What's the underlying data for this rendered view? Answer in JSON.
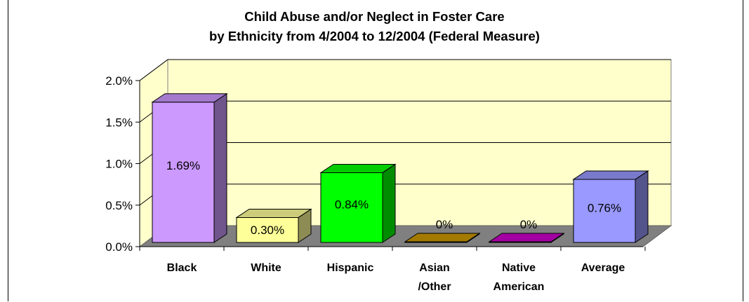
{
  "chart_data": {
    "type": "bar",
    "title_lines": [
      "Child Abuse and/or Neglect in Foster Care",
      "by Ethnicity from 4/2004 to 12/2004 (Federal Measure)"
    ],
    "categories": [
      [
        "Black"
      ],
      [
        "White"
      ],
      [
        "Hispanic"
      ],
      [
        "Asian",
        "/Other"
      ],
      [
        "Native",
        "American"
      ],
      [
        "Average"
      ]
    ],
    "values": [
      1.69,
      0.3,
      0.84,
      0,
      0,
      0.76
    ],
    "data_labels": [
      "1.69%",
      "0.30%",
      "0.84%",
      "0%",
      "0%",
      "0.76%"
    ],
    "y_ticks": [
      "0.0%",
      "0.5%",
      "1.0%",
      "1.5%",
      "2.0%"
    ],
    "ylim": [
      0,
      2.0
    ],
    "grid": true,
    "legend": "none",
    "colors": {
      "bars": [
        "#cc99ff",
        "#ffff99",
        "#00ff00",
        "#cc9900",
        "#cc00cc",
        "#9999ff"
      ],
      "wall": "#ffffcc",
      "floor": "#808080",
      "gridline": "#000000"
    }
  }
}
